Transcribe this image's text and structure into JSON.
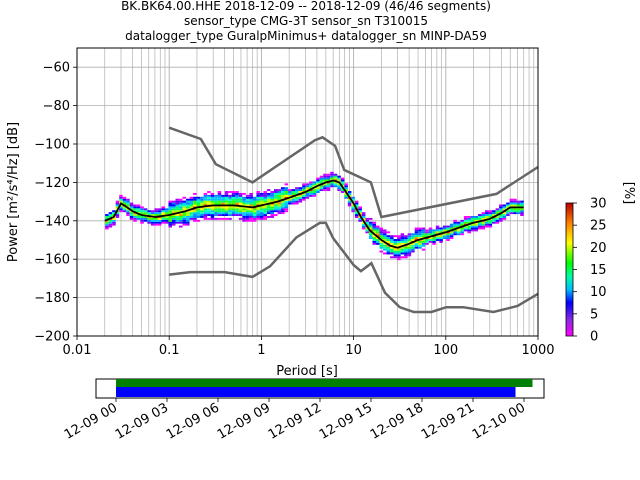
{
  "title": {
    "line1": "BK.BK64.00.HHE   2018-12-09 -- 2018-12-09  (46/46 segments)",
    "line2": "sensor_type CMG-3T sensor_sn T310015",
    "line3": "datalogger_type GuralpMinimus+ datalogger_sn MINP-DA59"
  },
  "chart_data": [
    {
      "type": "heatmap",
      "title": "BK.BK64.00.HHE   2018-12-09 -- 2018-12-09  (46/46 segments)",
      "xlabel": "Period [s]",
      "ylabel": "Power [m²/s⁴/Hz] [dB]",
      "xscale": "log",
      "xlim": [
        0.01,
        1000
      ],
      "ylim": [
        -200,
        -50
      ],
      "grid": true,
      "xticks": [
        "0.01",
        "0.1",
        "1",
        "10",
        "100",
        "1000"
      ],
      "yticks": [
        "−60",
        "−80",
        "−100",
        "−120",
        "−140",
        "−160",
        "−180",
        "−200"
      ],
      "high_noise_model": {
        "period": [
          0.1,
          0.22,
          0.32,
          0.8,
          3.8,
          4.6,
          6.3,
          7.9,
          15.4,
          20,
          354.8,
          1000
        ],
        "power": [
          -91.5,
          -97.4,
          -110.5,
          -120,
          -98,
          -96.5,
          -101,
          -113.5,
          -120,
          -138,
          -126,
          -112
        ]
      },
      "low_noise_model": {
        "period": [
          0.1,
          0.17,
          0.4,
          0.8,
          1.24,
          2.4,
          4.3,
          5,
          6,
          10,
          12,
          15.6,
          21.9,
          31.6,
          45,
          70,
          101,
          154,
          328,
          600,
          1000
        ],
        "power": [
          -168,
          -166.7,
          -166.7,
          -169.2,
          -163.7,
          -148.6,
          -141.1,
          -141.1,
          -149,
          -163,
          -166.2,
          -162.1,
          -177.5,
          -185,
          -187.5,
          -187.5,
          -185,
          -185,
          -187.5,
          -184.4,
          -178
        ]
      },
      "mode": {
        "period": [
          0.02,
          0.025,
          0.03,
          0.035,
          0.04,
          0.05,
          0.07,
          0.1,
          0.15,
          0.2,
          0.3,
          0.5,
          0.8,
          1,
          1.5,
          2,
          3,
          4,
          5,
          6,
          7,
          8,
          10,
          12,
          15,
          20,
          25,
          30,
          40,
          50,
          70,
          100,
          150,
          200,
          300,
          400,
          500,
          700
        ],
        "power": [
          -140,
          -138,
          -131,
          -133,
          -135,
          -137,
          -138,
          -137,
          -135,
          -133,
          -132,
          -132,
          -133,
          -132,
          -130,
          -128,
          -125,
          -122,
          -120,
          -119,
          -120,
          -124,
          -131,
          -138,
          -145,
          -150,
          -153,
          -154,
          -152,
          -150,
          -148,
          -146,
          -143,
          -141,
          -139,
          -136,
          -133,
          -133
        ]
      },
      "colorbar": {
        "label": "[%]",
        "range": [
          0,
          30
        ],
        "ticks": [
          "0",
          "5",
          "10",
          "15",
          "20",
          "25",
          "30"
        ]
      }
    },
    {
      "type": "bar",
      "description": "data availability timeline",
      "x_ticks": [
        "12-09 00",
        "12-09 03",
        "12-09 06",
        "12-09 09",
        "12-09 12",
        "12-09 15",
        "12-09 18",
        "12-09 21",
        "12-10 00"
      ],
      "series": [
        {
          "start": "12-09 00:00",
          "end": "12-10 00:30",
          "color": "#008000"
        },
        {
          "start": "12-09 00:00",
          "end": "12-09 23:30",
          "color": "#0000ff"
        }
      ]
    }
  ],
  "colors": {
    "noise_model": "#666666",
    "mode_line": "#000000",
    "grid": "#b0b0b0"
  }
}
